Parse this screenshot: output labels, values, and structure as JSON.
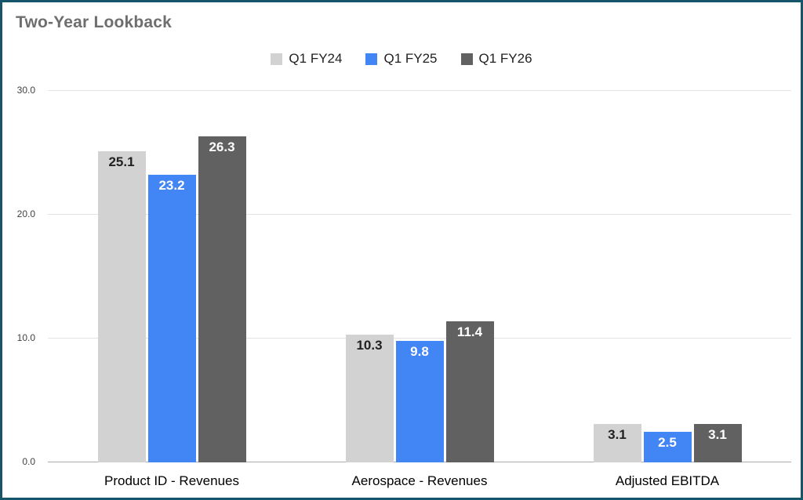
{
  "window": {
    "border_color": "#17556d",
    "background": "#ffffff"
  },
  "chart_data": {
    "type": "bar",
    "title": "Two-Year Lookback",
    "categories": [
      "Product ID - Revenues",
      "Aerospace - Revenues",
      "Adjusted EBITDA"
    ],
    "series": [
      {
        "name": "Q1 FY24",
        "color": "#d2d2d2",
        "label_color": "#212121",
        "values": [
          25.1,
          10.3,
          3.1
        ]
      },
      {
        "name": "Q1 FY25",
        "color": "#4285f4",
        "label_color": "#ffffff",
        "values": [
          23.2,
          9.8,
          2.5
        ]
      },
      {
        "name": "Q1 FY26",
        "color": "#616161",
        "label_color": "#ffffff",
        "values": [
          26.3,
          11.4,
          3.1
        ]
      }
    ],
    "y_axis": {
      "min": 0,
      "max": 30,
      "ticks": [
        0,
        10,
        20,
        30
      ],
      "tick_labels": [
        "0.0",
        "10.0",
        "20.0",
        "30.0"
      ]
    },
    "grid": true,
    "legend_position": "top",
    "value_label_decimals": 1
  }
}
